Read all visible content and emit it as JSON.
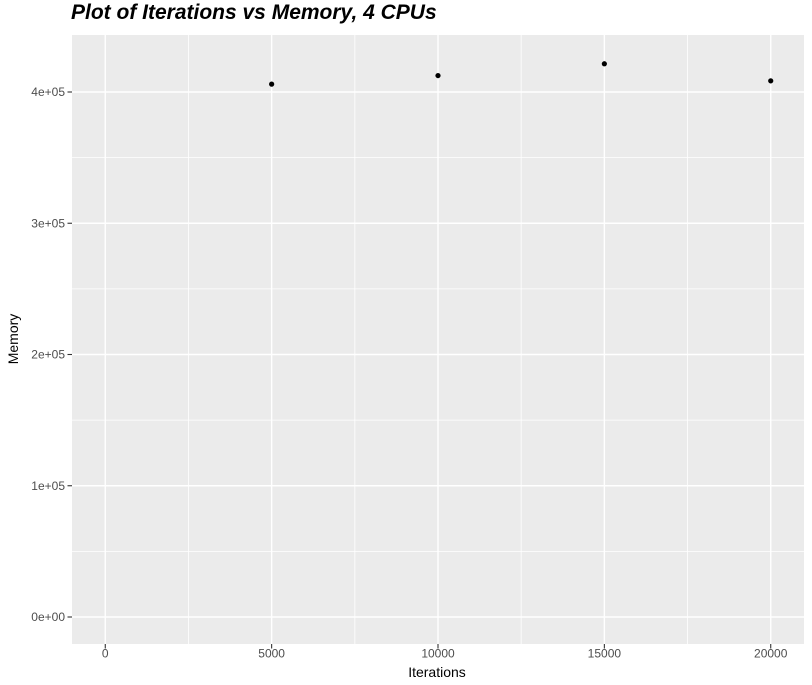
{
  "chart_data": {
    "type": "scatter",
    "title": "Plot of Iterations vs Memory, 4 CPUs",
    "xlabel": "Iterations",
    "ylabel": "Memory",
    "x": [
      5000,
      10000,
      15000,
      20000
    ],
    "y": [
      406000,
      412500,
      421500,
      408500
    ],
    "xlim": [
      -1000,
      21000
    ],
    "ylim": [
      -20571,
      443429
    ],
    "x_ticks": {
      "values": [
        0,
        5000,
        10000,
        15000,
        20000
      ],
      "labels": [
        "0",
        "5000",
        "10000",
        "15000",
        "20000"
      ]
    },
    "y_ticks": {
      "values": [
        0,
        100000,
        200000,
        300000,
        400000
      ],
      "labels": [
        "0e+00",
        "1e+05",
        "2e+05",
        "3e+05",
        "4e+05"
      ]
    },
    "x_minor": [
      2500,
      7500,
      12500,
      17500
    ],
    "y_minor": [
      50000,
      150000,
      250000,
      350000
    ],
    "grid": "major+minor",
    "legend": "none",
    "theme": "ggplot2-gray",
    "point_radius_px": 2.6,
    "colors": {
      "page_bg": "#FFFFFF",
      "panel_bg": "#EBEBEB",
      "grid": "#FFFFFF",
      "point": "#000000",
      "tick_mark": "#333333",
      "tick_label": "#4D4D4D",
      "title": "#000000",
      "axis_title": "#000000"
    }
  }
}
